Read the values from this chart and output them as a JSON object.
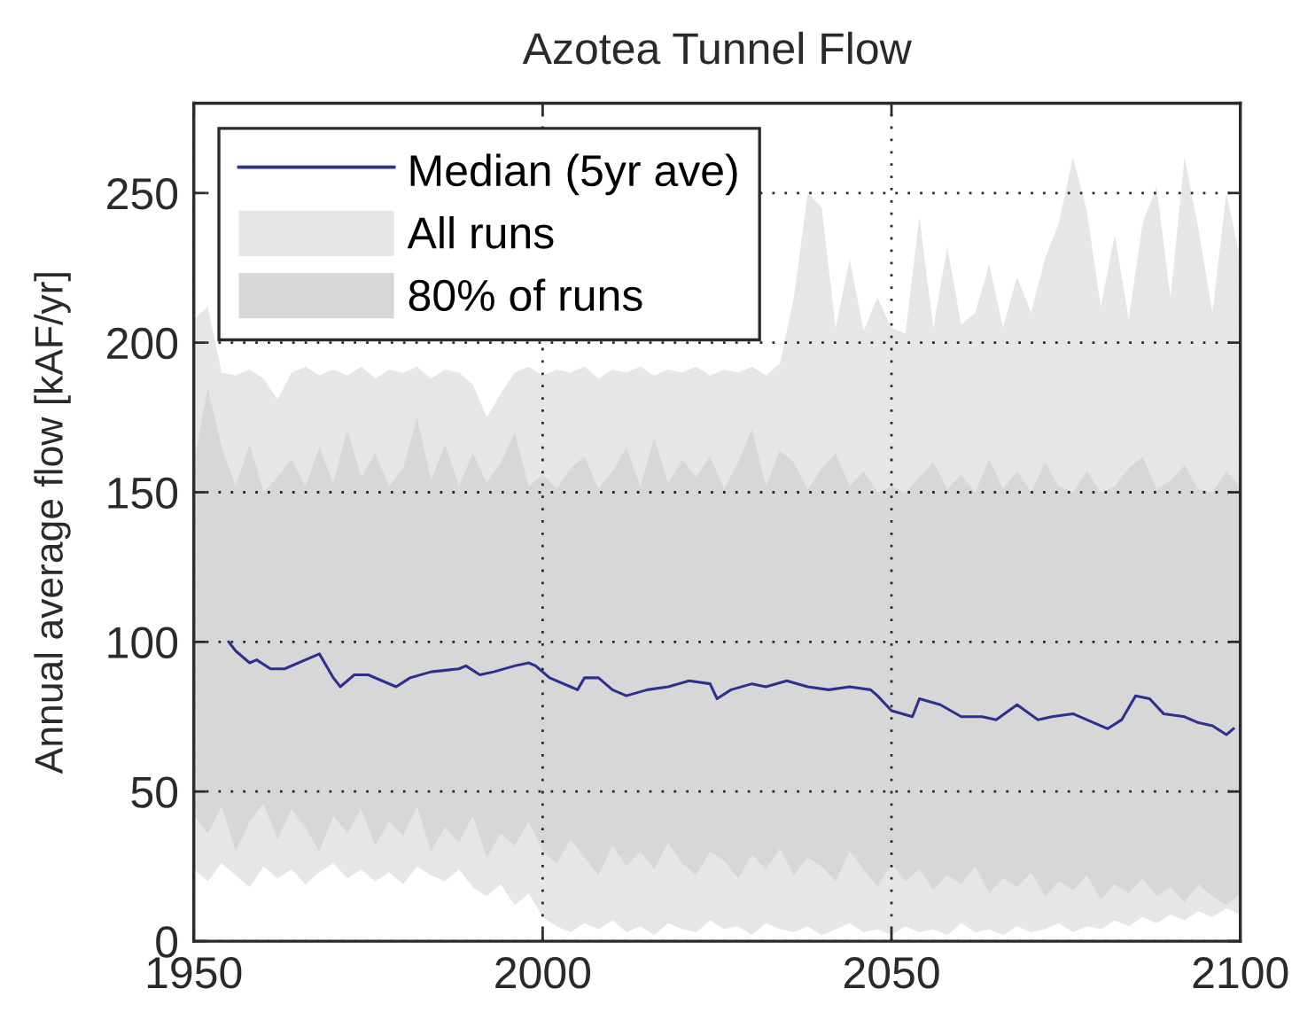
{
  "chart_data": {
    "type": "line",
    "title": "Azotea Tunnel Flow",
    "ylabel": "Annual average flow [kAF/yr]",
    "x": [
      1950,
      1952,
      1954,
      1956,
      1958,
      1960,
      1962,
      1964,
      1966,
      1968,
      1970,
      1972,
      1974,
      1976,
      1978,
      1980,
      1982,
      1984,
      1986,
      1988,
      1990,
      1992,
      1994,
      1996,
      1998,
      2000,
      2002,
      2004,
      2006,
      2008,
      2010,
      2012,
      2014,
      2016,
      2018,
      2020,
      2022,
      2024,
      2026,
      2028,
      2030,
      2032,
      2034,
      2036,
      2038,
      2040,
      2042,
      2044,
      2046,
      2048,
      2050,
      2052,
      2054,
      2056,
      2058,
      2060,
      2062,
      2064,
      2066,
      2068,
      2070,
      2072,
      2074,
      2076,
      2078,
      2080,
      2082,
      2084,
      2086,
      2088,
      2090,
      2092,
      2094,
      2096,
      2098,
      2100
    ],
    "series": [
      {
        "name": "Median (5yr ave)",
        "color": "#2f2f8f",
        "x": [
          1955,
          1956,
          1958,
          1959,
          1961,
          1963,
          1966,
          1968,
          1970,
          1971,
          1973,
          1975,
          1979,
          1981,
          1984,
          1988,
          1989,
          1991,
          1993,
          1996,
          1998,
          1999,
          2001,
          2004,
          2005,
          2006,
          2008,
          2010,
          2012,
          2015,
          2018,
          2021,
          2024,
          2025,
          2027,
          2030,
          2032,
          2035,
          2038,
          2041,
          2044,
          2047,
          2048,
          2050,
          2053,
          2054,
          2057,
          2060,
          2063,
          2065,
          2068,
          2071,
          2073,
          2076,
          2079,
          2081,
          2083,
          2085,
          2087,
          2089,
          2092,
          2094,
          2096,
          2098,
          2099
        ],
        "values": [
          100,
          97,
          93,
          94,
          91,
          91,
          94,
          96,
          88,
          85,
          89,
          89,
          85,
          88,
          90,
          91,
          92,
          89,
          90,
          92,
          93,
          92,
          88,
          85,
          84,
          88,
          88,
          84,
          82,
          84,
          85,
          87,
          86,
          81,
          84,
          86,
          85,
          87,
          85,
          84,
          85,
          84,
          82,
          77,
          75,
          81,
          79,
          75,
          75,
          74,
          79,
          74,
          75,
          76,
          73,
          71,
          74,
          82,
          81,
          76,
          75,
          73,
          72,
          69,
          71
        ]
      },
      {
        "name": "All runs",
        "type": "area",
        "color": "#e6e6e6",
        "values": [
          null,
          null,
          null,
          null,
          null,
          null,
          null,
          null,
          null,
          null,
          null,
          null,
          null,
          null,
          null,
          null,
          null,
          null,
          null,
          null,
          null,
          null,
          null,
          null,
          null,
          null,
          null,
          null,
          null,
          null,
          null,
          null,
          null,
          null,
          null,
          null,
          null,
          null,
          null,
          null,
          null,
          null,
          null,
          null,
          null,
          null,
          null,
          null,
          null,
          null,
          null,
          null,
          null,
          null,
          null,
          null,
          null,
          null,
          null,
          null,
          null,
          null,
          null,
          null,
          null,
          null,
          null,
          null,
          null,
          null,
          null,
          null,
          null,
          null,
          null,
          null
        ],
        "lower": [
          24,
          20,
          26,
          22,
          18,
          25,
          21,
          24,
          19,
          23,
          26,
          21,
          24,
          20,
          23,
          19,
          25,
          22,
          20,
          24,
          18,
          15,
          19,
          12,
          16,
          8,
          5,
          3,
          6,
          4,
          7,
          3,
          5,
          2,
          6,
          4,
          3,
          7,
          4,
          5,
          2,
          6,
          4,
          3,
          5,
          2,
          4,
          6,
          3,
          4,
          2,
          5,
          3,
          4,
          2,
          6,
          3,
          4,
          2,
          5,
          3,
          4,
          6,
          3,
          5,
          4,
          7,
          5,
          8,
          6,
          9,
          7,
          10,
          8,
          11,
          9
        ],
        "upper": [
          208,
          212,
          190,
          189,
          191,
          188,
          181,
          190,
          192,
          189,
          191,
          189,
          192,
          188,
          191,
          190,
          192,
          188,
          191,
          190,
          186,
          175,
          183,
          190,
          192,
          189,
          191,
          190,
          192,
          188,
          191,
          190,
          192,
          189,
          191,
          190,
          192,
          189,
          191,
          190,
          192,
          189,
          193,
          215,
          250,
          245,
          205,
          228,
          204,
          215,
          205,
          203,
          242,
          205,
          232,
          206,
          210,
          226,
          205,
          222,
          210,
          228,
          240,
          262,
          244,
          212,
          236,
          208,
          240,
          252,
          215,
          262,
          238,
          210,
          250,
          228
        ]
      },
      {
        "name": "80% of runs",
        "type": "area",
        "color": "#d7d7d7",
        "values": [
          null,
          null,
          null,
          null,
          null,
          null,
          null,
          null,
          null,
          null,
          null,
          null,
          null,
          null,
          null,
          null,
          null,
          null,
          null,
          null,
          null,
          null,
          null,
          null,
          null,
          null,
          null,
          null,
          null,
          null,
          null,
          null,
          null,
          null,
          null,
          null,
          null,
          null,
          null,
          null,
          null,
          null,
          null,
          null,
          null,
          null,
          null,
          null,
          null,
          null,
          null,
          null,
          null,
          null,
          null,
          null,
          null,
          null,
          null,
          null,
          null,
          null,
          null,
          null,
          null,
          null,
          null,
          null,
          null,
          null,
          null,
          null,
          null,
          null,
          null,
          null
        ],
        "lower": [
          42,
          36,
          45,
          30,
          40,
          46,
          34,
          44,
          38,
          30,
          42,
          36,
          44,
          32,
          40,
          35,
          45,
          30,
          38,
          33,
          42,
          28,
          36,
          32,
          40,
          30,
          26,
          34,
          28,
          22,
          32,
          25,
          30,
          24,
          33,
          26,
          22,
          30,
          27,
          21,
          29,
          24,
          31,
          22,
          28,
          25,
          20,
          30,
          24,
          18,
          26,
          20,
          24,
          17,
          22,
          19,
          25,
          16,
          21,
          18,
          23,
          15,
          20,
          17,
          22,
          14,
          19,
          16,
          21,
          15,
          18,
          13,
          19,
          15,
          12,
          16
        ],
        "upper": [
          160,
          185,
          165,
          152,
          166,
          150,
          155,
          161,
          152,
          165,
          153,
          171,
          155,
          163,
          152,
          158,
          175,
          154,
          166,
          152,
          163,
          153,
          160,
          170,
          152,
          156,
          151,
          158,
          162,
          151,
          157,
          165,
          152,
          168,
          153,
          161,
          155,
          162,
          151,
          160,
          171,
          152,
          164,
          160,
          151,
          158,
          163,
          152,
          157,
          150,
          152,
          150,
          155,
          160,
          151,
          156,
          150,
          161,
          151,
          157,
          150,
          160,
          152,
          150,
          157,
          150,
          152,
          158,
          162,
          151,
          154,
          159,
          151,
          150,
          157,
          152
        ]
      }
    ],
    "xlim": [
      1950,
      2100
    ],
    "xticks": [
      1950,
      2000,
      2050,
      2100
    ],
    "ylim": [
      0,
      280
    ],
    "yticks": [
      0,
      50,
      100,
      150,
      200,
      250
    ],
    "grid": true,
    "legend": "top left",
    "line_style": "solid"
  }
}
